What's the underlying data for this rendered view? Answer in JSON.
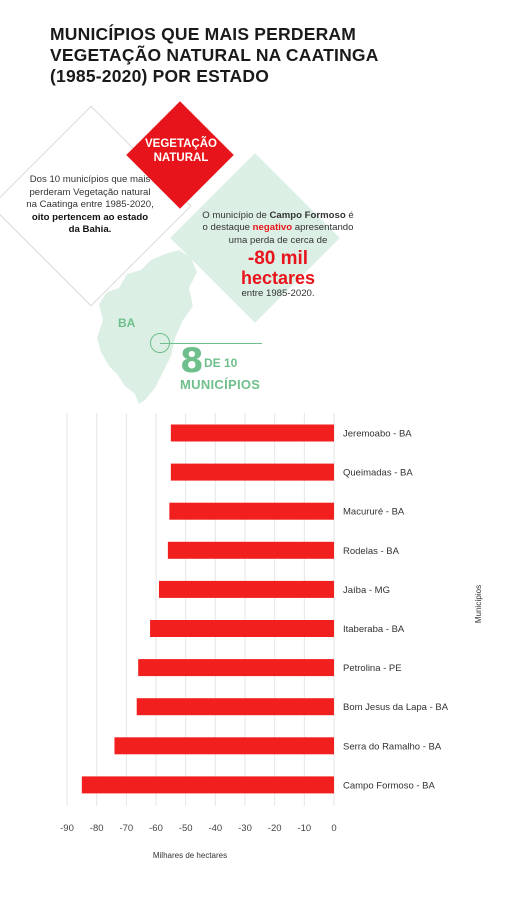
{
  "title": {
    "line1": "MUNICÍPIOS QUE MAIS PERDERAM",
    "line2": "VEGETAÇÃO NATURAL NA CAATINGA",
    "line3": " (1985-2020) POR ESTADO"
  },
  "infographic": {
    "red_badge": {
      "line1": "VEGETAÇÃO",
      "line2": "NATURAL"
    },
    "left_note": {
      "text": "Dos 10 municípios que mais perderam Vegetação natural na Caatinga entre 1985-2020,",
      "bold": "oito pertencem ao estado da Bahia."
    },
    "right_note": {
      "pre": "O município de",
      "bold_city": "Campo Formoso",
      "mid": "é o destaque",
      "negative": "negativo",
      "post": "apresentando uma perda de cerca de",
      "big_number": "-80 mil",
      "big_unit": "hectares",
      "period": "entre 1985-2020."
    },
    "state_label": "BA",
    "count_number": "8",
    "count_of": "DE 10",
    "count_label": "MUNICÍPIOS",
    "colors": {
      "red": "#e8141c",
      "green": "#6ebf8b",
      "light_green": "#dcefe4"
    }
  },
  "chart_data": {
    "type": "bar",
    "orientation": "horizontal",
    "categories": [
      "Jeremoabo - BA",
      "Queimadas - BA",
      "Macururé - BA",
      "Rodelas - BA",
      "Jaíba - MG",
      "Itaberaba - BA",
      "Petrolina - PE",
      "Bom Jesus da Lapa - BA",
      "Serra do Ramalho - BA",
      "Campo Formoso - BA"
    ],
    "values": [
      -55,
      -55,
      -55.5,
      -56,
      -59,
      -62,
      -66,
      -66.5,
      -74,
      -85
    ],
    "xlabel": "Milhares de hectares",
    "ylabel": "Municípios",
    "xlim": [
      -90,
      0
    ],
    "xticks": [
      -90,
      -80,
      -70,
      -60,
      -50,
      -40,
      -30,
      -20,
      -10,
      0
    ],
    "grid": true,
    "bar_color": "#f21f1f"
  }
}
